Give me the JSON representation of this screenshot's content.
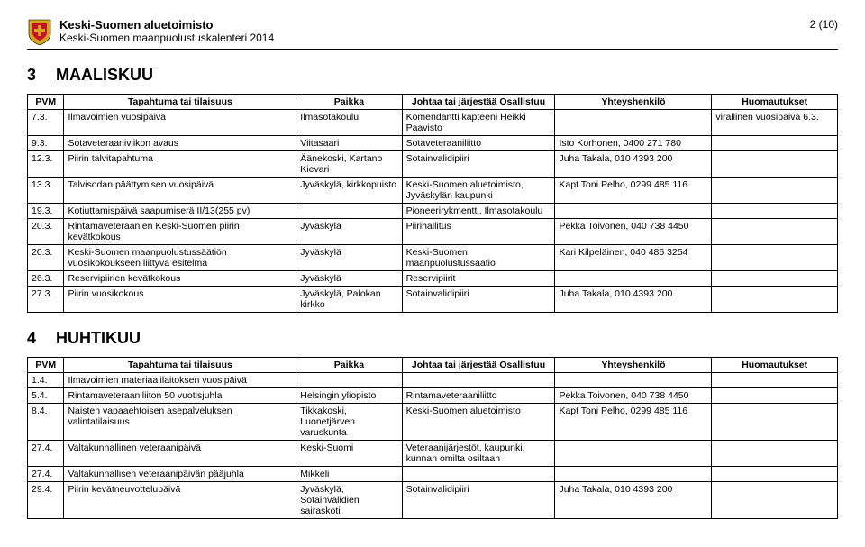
{
  "header": {
    "title": "Keski-Suomen aluetoimisto",
    "subtitle": "Keski-Suomen maanpuolustuskalenteri 2014",
    "page": "2 (10)"
  },
  "columns": {
    "pvm": "PVM",
    "tapahtuma": "Tapahtuma tai tilaisuus",
    "paikka": "Paikka",
    "johtaa": "Johtaa tai järjestää Osallistuu",
    "yhteys": "Yhteyshenkilö",
    "huom": "Huomautukset"
  },
  "sections": [
    {
      "num": "3",
      "name": "MAALISKUU",
      "rows": [
        {
          "pvm": "7.3.",
          "tap": "Ilmavoimien vuosipäivä",
          "pai": "Ilmasotakoulu",
          "joh": "Komendantti kapteeni Heikki Paavisto",
          "yht": "",
          "huo": "virallinen vuosipäivä 6.3."
        },
        {
          "pvm": "9.3.",
          "tap": "Sotaveteraaniviikon avaus",
          "pai": "Viitasaari",
          "joh": "Sotaveteraaniliitto",
          "yht": "Isto Korhonen, 0400 271 780",
          "huo": ""
        },
        {
          "pvm": "12.3.",
          "tap": "Piirin talvitapahtuma",
          "pai": "Äänekoski, Kartano Kievari",
          "joh": "Sotainvalidipiiri",
          "yht": "Juha Takala, 010 4393 200",
          "huo": ""
        },
        {
          "pvm": "13.3.",
          "tap": "Talvisodan päättymisen vuosipäivä",
          "pai": "Jyväskylä, kirkkopuisto",
          "joh": "Keski-Suomen aluetoimisto, Jyväskylän kaupunki",
          "yht": "Kapt Toni Pelho, 0299 485 116",
          "huo": ""
        },
        {
          "pvm": "19.3.",
          "tap": "Kotiuttamispäivä saapumiserä II/13(255 pv)",
          "pai": "",
          "joh": "Pioneerirykmentti, Ilmasotakoulu",
          "yht": "",
          "huo": ""
        },
        {
          "pvm": "20.3.",
          "tap": "Rintamaveteraanien Keski-Suomen piirin kevätkokous",
          "pai": "Jyväskylä",
          "joh": "Piirihallitus",
          "yht": "Pekka Toivonen, 040 738 4450",
          "huo": ""
        },
        {
          "pvm": "20.3.",
          "tap": "Keski-Suomen maanpuolustussäätiön vuosikokoukseen liittyvä esitelmä",
          "pai": "Jyväskylä",
          "joh": "Keski-Suomen maanpuolustussäätiö",
          "yht": "Kari Kilpeläinen, 040 486 3254",
          "huo": ""
        },
        {
          "pvm": "26.3.",
          "tap": "Reservipiirien kevätkokous",
          "pai": "Jyväskylä",
          "joh": "Reservipiirit",
          "yht": "",
          "huo": ""
        },
        {
          "pvm": "27.3.",
          "tap": "Piirin vuosikokous",
          "pai": "Jyväskylä, Palokan kirkko",
          "joh": "Sotainvalidipiiri",
          "yht": "Juha Takala, 010 4393 200",
          "huo": ""
        }
      ]
    },
    {
      "num": "4",
      "name": "HUHTIKUU",
      "rows": [
        {
          "pvm": "1.4.",
          "tap": "Ilmavoimien materiaalilaitoksen vuosipäivä",
          "pai": "",
          "joh": "",
          "yht": "",
          "huo": ""
        },
        {
          "pvm": "5.4.",
          "tap": "Rintamaveteraaniliiton 50 vuotisjuhla",
          "pai": "Helsingin yliopisto",
          "joh": "Rintamaveteraaniliitto",
          "yht": "Pekka Toivonen, 040 738 4450",
          "huo": ""
        },
        {
          "pvm": "8.4.",
          "tap": "Naisten vapaaehtoisen asepalveluksen valintatilaisuus",
          "pai": "Tikkakoski, Luonetjärven varuskunta",
          "joh": "Keski-Suomen aluetoimisto",
          "yht": "Kapt Toni Pelho, 0299 485 116",
          "huo": ""
        },
        {
          "pvm": "27.4.",
          "tap": "Valtakunnallinen veteraanipäivä",
          "pai": "Keski-Suomi",
          "joh": "Veteraanijärjestöt, kaupunki, kunnan omilta osiltaan",
          "yht": "",
          "huo": ""
        },
        {
          "pvm": "27.4.",
          "tap": "Valtakunnallisen veteraanipäivän pääjuhla",
          "pai": "Mikkeli",
          "joh": "",
          "yht": "",
          "huo": ""
        },
        {
          "pvm": "29.4.",
          "tap": "Piirin kevätneuvottelupäivä",
          "pai": "Jyväskylä, Sotainvalidien sairaskoti",
          "joh": "Sotainvalidipiiri",
          "yht": "Juha Takala, 010 4393 200",
          "huo": ""
        }
      ]
    }
  ]
}
